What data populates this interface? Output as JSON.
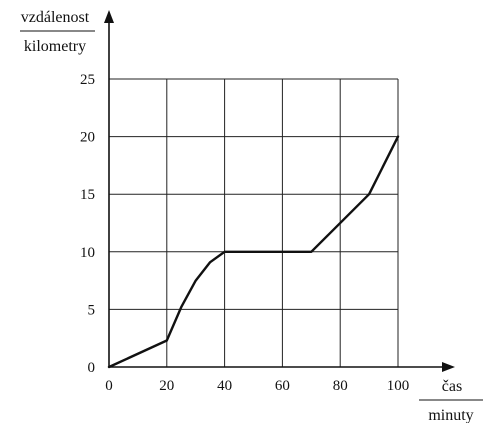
{
  "chart_data": {
    "type": "line",
    "x_axis": {
      "label_top": "čas",
      "label_bottom": "minuty",
      "range": [
        0,
        100
      ],
      "ticks": [
        0,
        20,
        40,
        60,
        80,
        100
      ],
      "tick_labels": [
        "0",
        "20",
        "40",
        "60",
        "80",
        "100"
      ]
    },
    "y_axis": {
      "label_top": "vzdálenost",
      "label_bottom": "kilometry",
      "range": [
        0,
        25
      ],
      "ticks": [
        0,
        5,
        10,
        15,
        20,
        25
      ],
      "tick_labels": [
        "0",
        "5",
        "10",
        "15",
        "20",
        "25"
      ]
    },
    "grid": {
      "on": true,
      "x_step": 20,
      "y_step": 5
    },
    "series": [
      {
        "points": [
          [
            0,
            0
          ],
          [
            20,
            2.3
          ],
          [
            25,
            5.2
          ],
          [
            30,
            7.5
          ],
          [
            35,
            9.1
          ],
          [
            40,
            10
          ],
          [
            70,
            10
          ],
          [
            90,
            15
          ],
          [
            100,
            20
          ]
        ]
      }
    ],
    "colors": {
      "line": "#111111",
      "grid": "#222222",
      "axis": "#111111"
    }
  }
}
